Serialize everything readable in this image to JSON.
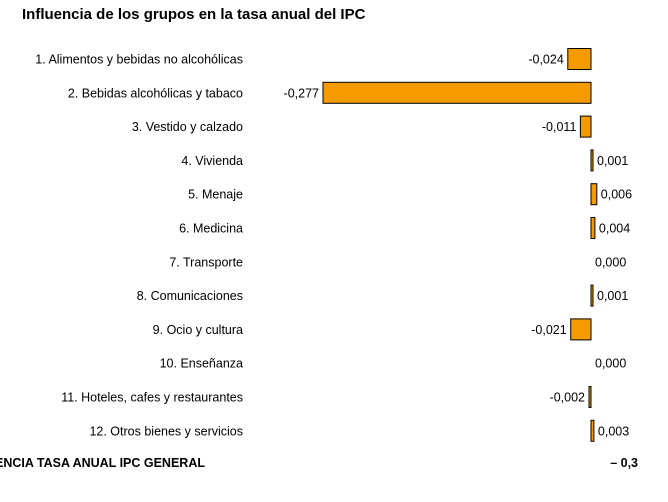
{
  "chart_data": {
    "type": "bar",
    "orientation": "horizontal",
    "title": "Influencia de los grupos en la tasa anual del IPC",
    "categories": [
      "1. Alimentos y bebidas no alcohólicas",
      "2. Bebidas alcohólicas y tabaco",
      "3. Vestido y calzado",
      "4. Vivienda",
      "5. Menaje",
      "6. Medicina",
      "7. Transporte",
      "8. Comunicaciones",
      "9. Ocio y cultura",
      "10. Enseñanza",
      "11. Hoteles, cafes y restaurantes",
      "12. Otros bienes y servicios"
    ],
    "values": [
      -0.024,
      -0.277,
      -0.011,
      0.001,
      0.006,
      0.004,
      0.0,
      0.001,
      -0.021,
      0.0,
      -0.002,
      0.003
    ],
    "value_labels": [
      "-0,024",
      "-0,277",
      "-0,011",
      "0,001",
      "0,006",
      "0,004",
      "0,000",
      "0,001",
      "-0,021",
      "0,000",
      "-0,002",
      "0,003"
    ],
    "bar_color": "#f59b00",
    "grid": false,
    "legend": "none",
    "total": {
      "label": "RENCIA TASA ANUAL IPC GENERAL",
      "value": "– 0,3"
    }
  }
}
